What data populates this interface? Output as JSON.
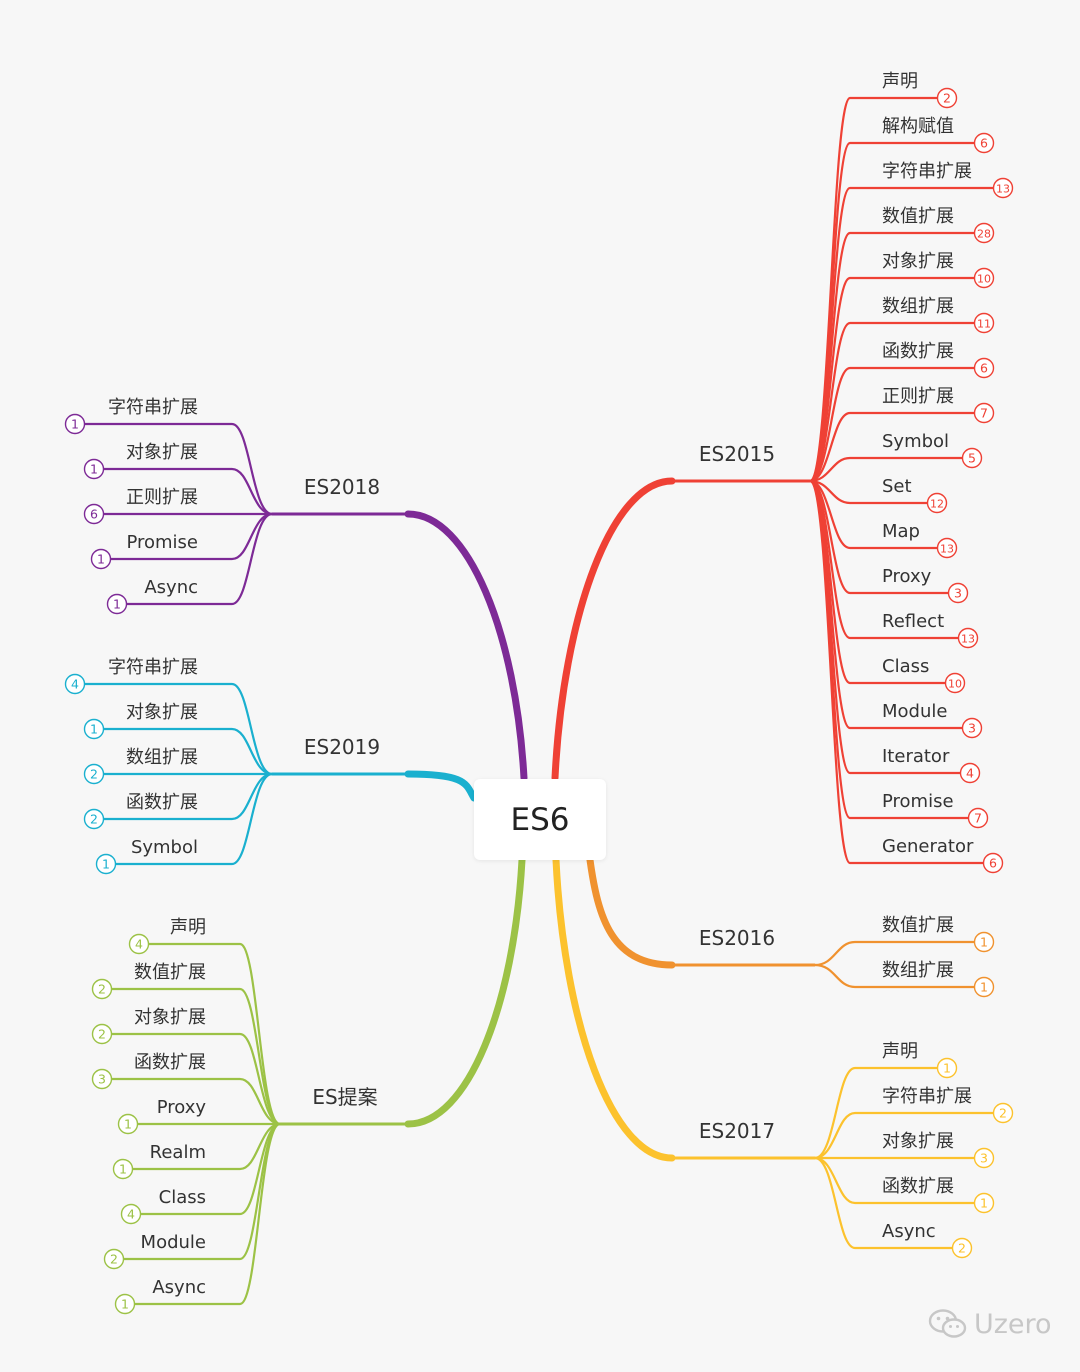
{
  "root": {
    "label": "ES6"
  },
  "watermark": {
    "text": "Uzero",
    "icon": "wechat-icon"
  },
  "branches": [
    {
      "id": "es2015",
      "label": "ES2015",
      "color": "#ef4135",
      "side": "right",
      "children": [
        {
          "label": "声明",
          "count": "2"
        },
        {
          "label": "解构赋值",
          "count": "6"
        },
        {
          "label": "字符串扩展",
          "count": "13"
        },
        {
          "label": "数值扩展",
          "count": "28"
        },
        {
          "label": "对象扩展",
          "count": "10"
        },
        {
          "label": "数组扩展",
          "count": "11"
        },
        {
          "label": "函数扩展",
          "count": "6"
        },
        {
          "label": "正则扩展",
          "count": "7"
        },
        {
          "label": "Symbol",
          "count": "5"
        },
        {
          "label": "Set",
          "count": "12"
        },
        {
          "label": "Map",
          "count": "13"
        },
        {
          "label": "Proxy",
          "count": "3"
        },
        {
          "label": "Reflect",
          "count": "13"
        },
        {
          "label": "Class",
          "count": "10"
        },
        {
          "label": "Module",
          "count": "3"
        },
        {
          "label": "Iterator",
          "count": "4"
        },
        {
          "label": "Promise",
          "count": "7"
        },
        {
          "label": "Generator",
          "count": "6"
        }
      ]
    },
    {
      "id": "es2016",
      "label": "ES2016",
      "color": "#f0922f",
      "side": "right",
      "children": [
        {
          "label": "数值扩展",
          "count": "1"
        },
        {
          "label": "数组扩展",
          "count": "1"
        }
      ]
    },
    {
      "id": "es2017",
      "label": "ES2017",
      "color": "#fcc22d",
      "side": "right",
      "children": [
        {
          "label": "声明",
          "count": "1"
        },
        {
          "label": "字符串扩展",
          "count": "2"
        },
        {
          "label": "对象扩展",
          "count": "3"
        },
        {
          "label": "函数扩展",
          "count": "1"
        },
        {
          "label": "Async",
          "count": "2"
        }
      ]
    },
    {
      "id": "es2018",
      "label": "ES2018",
      "color": "#7d2a96",
      "side": "left",
      "children": [
        {
          "label": "字符串扩展",
          "count": "1"
        },
        {
          "label": "对象扩展",
          "count": "1"
        },
        {
          "label": "正则扩展",
          "count": "6"
        },
        {
          "label": "Promise",
          "count": "1"
        },
        {
          "label": "Async",
          "count": "1"
        }
      ]
    },
    {
      "id": "es2019",
      "label": "ES2019",
      "color": "#1ab0cf",
      "side": "left",
      "children": [
        {
          "label": "字符串扩展",
          "count": "4"
        },
        {
          "label": "对象扩展",
          "count": "1"
        },
        {
          "label": "数组扩展",
          "count": "2"
        },
        {
          "label": "函数扩展",
          "count": "2"
        },
        {
          "label": "Symbol",
          "count": "1"
        }
      ]
    },
    {
      "id": "esproposal",
      "label": "ES提案",
      "color": "#9cc246",
      "side": "left",
      "children": [
        {
          "label": "声明",
          "count": "4"
        },
        {
          "label": "数值扩展",
          "count": "2"
        },
        {
          "label": "对象扩展",
          "count": "2"
        },
        {
          "label": "函数扩展",
          "count": "3"
        },
        {
          "label": "Proxy",
          "count": "1"
        },
        {
          "label": "Realm",
          "count": "1"
        },
        {
          "label": "Class",
          "count": "4"
        },
        {
          "label": "Module",
          "count": "2"
        },
        {
          "label": "Async",
          "count": "1"
        }
      ]
    }
  ]
}
